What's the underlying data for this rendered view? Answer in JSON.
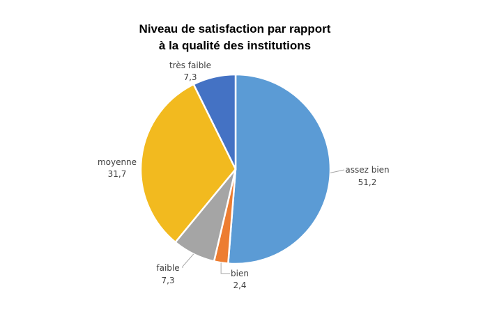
{
  "chart_data": {
    "type": "pie",
    "title_lines": [
      "Niveau de satisfaction par rapport",
      "à la qualité des institutions"
    ],
    "slices": [
      {
        "label": "assez bien",
        "value_text": "51,2",
        "value": 51.2,
        "color": "#5B9BD5"
      },
      {
        "label": "bien",
        "value_text": "2,4",
        "value": 2.4,
        "color": "#ED7D31"
      },
      {
        "label": "faible",
        "value_text": "7,3",
        "value": 7.3,
        "color": "#A5A5A5"
      },
      {
        "label": "moyenne",
        "value_text": "31,7",
        "value": 31.7,
        "color": "#F2BA1F"
      },
      {
        "label": "très faible",
        "value_text": "7,3",
        "value": 7.3,
        "color": "#4472C4"
      }
    ],
    "legend": "none"
  }
}
